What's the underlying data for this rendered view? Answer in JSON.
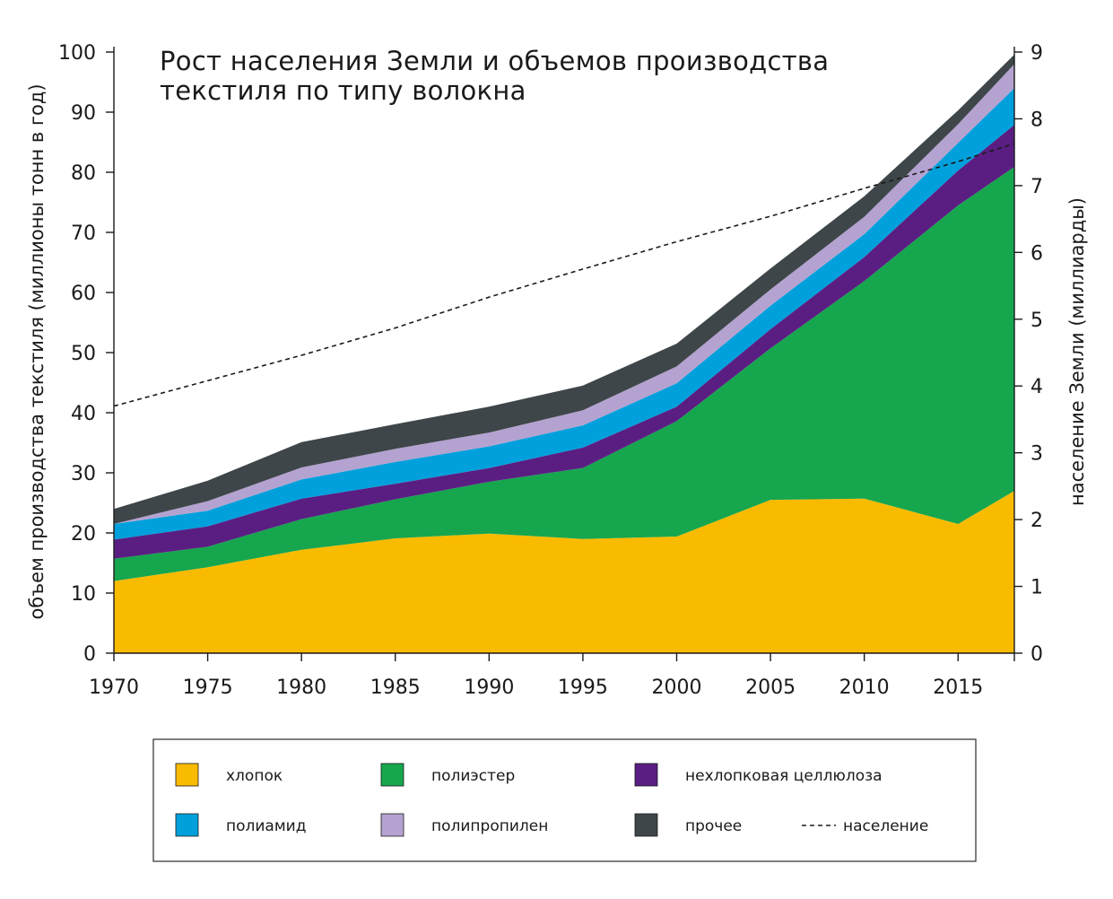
{
  "chart_data": {
    "type": "area",
    "stacked": true,
    "title_lines": [
      "Рост населения Земли и объемов производства",
      "текстиля по типу волокна"
    ],
    "ylabel": "объем производства текстиля (миллионы тонн в год)",
    "y2label": "население Земли (миллиарды)",
    "x": [
      1970,
      1975,
      1980,
      1985,
      1990,
      1995,
      2000,
      2005,
      2010,
      2015,
      2018
    ],
    "xticks": [
      1970,
      1975,
      1980,
      1985,
      1990,
      1995,
      2000,
      2005,
      2010,
      2015
    ],
    "xticklabels": [
      "1970",
      "1975",
      "1980",
      "1985",
      "1990",
      "1995",
      "2000",
      "2005",
      "2010",
      "2015"
    ],
    "xlim": [
      1970,
      2018
    ],
    "ylim": [
      0,
      100
    ],
    "yticks": [
      0,
      10,
      20,
      30,
      40,
      50,
      60,
      70,
      80,
      90,
      100
    ],
    "yticklabels": [
      "0",
      "10",
      "20",
      "30",
      "40",
      "50",
      "60",
      "70",
      "80",
      "90",
      "100"
    ],
    "y2lim": [
      0,
      9
    ],
    "y2ticks": [
      0,
      1,
      2,
      3,
      4,
      5,
      6,
      7,
      8,
      9
    ],
    "y2ticklabels": [
      "0",
      "1",
      "2",
      "3",
      "4",
      "5",
      "6",
      "7",
      "8",
      "9"
    ],
    "series": [
      {
        "key": "cotton",
        "name": "хлопок",
        "color": "#f9bb00",
        "values": [
          12,
          14.3,
          17.2,
          19.1,
          19.9,
          19.0,
          19.4,
          25.5,
          25.7,
          21.5,
          27.0
        ]
      },
      {
        "key": "polyester",
        "name": "полиэстер",
        "color": "#16a64e",
        "values": [
          3.7,
          3.4,
          5.1,
          6.5,
          8.6,
          11.8,
          19.2,
          25.2,
          36.2,
          53.0,
          53.9
        ]
      },
      {
        "key": "cellulose",
        "name": "нехлопковая целлюлоза",
        "color": "#5a1e83",
        "values": [
          3.2,
          3.4,
          3.4,
          2.6,
          2.3,
          3.4,
          2.4,
          3.2,
          4.0,
          5.8,
          7.0
        ]
      },
      {
        "key": "polyamide",
        "name": "полиамид",
        "color": "#00a0dc",
        "values": [
          2.6,
          2.6,
          3.2,
          3.6,
          3.6,
          3.7,
          3.9,
          3.9,
          3.8,
          4.6,
          6.1
        ]
      },
      {
        "key": "polypropylene",
        "name": "полипропилен",
        "color": "#b4a2d0",
        "values": [
          0.0,
          1.6,
          2.0,
          2.2,
          2.3,
          2.5,
          2.8,
          2.7,
          2.9,
          3.1,
          4.0
        ]
      },
      {
        "key": "other",
        "name": "прочее",
        "color": "#3e4649",
        "values": [
          2.5,
          3.4,
          4.2,
          4.1,
          4.3,
          4.1,
          3.8,
          3.5,
          3.4,
          2.3,
          1.6
        ]
      }
    ],
    "population": {
      "name": "население",
      "color": "#1a1a1a",
      "x": [
        1970,
        1975,
        1980,
        1985,
        1990,
        1995,
        2000,
        2005,
        2010,
        2015,
        2018
      ],
      "values": [
        3.7,
        4.08,
        4.46,
        4.87,
        5.33,
        5.75,
        6.16,
        6.54,
        6.96,
        7.36,
        7.63
      ]
    },
    "legend_placement": "bottom",
    "legend_rows": [
      [
        "cotton",
        "polyester",
        "cellulose"
      ],
      [
        "polyamide",
        "polypropylene",
        "other",
        "population"
      ]
    ]
  }
}
